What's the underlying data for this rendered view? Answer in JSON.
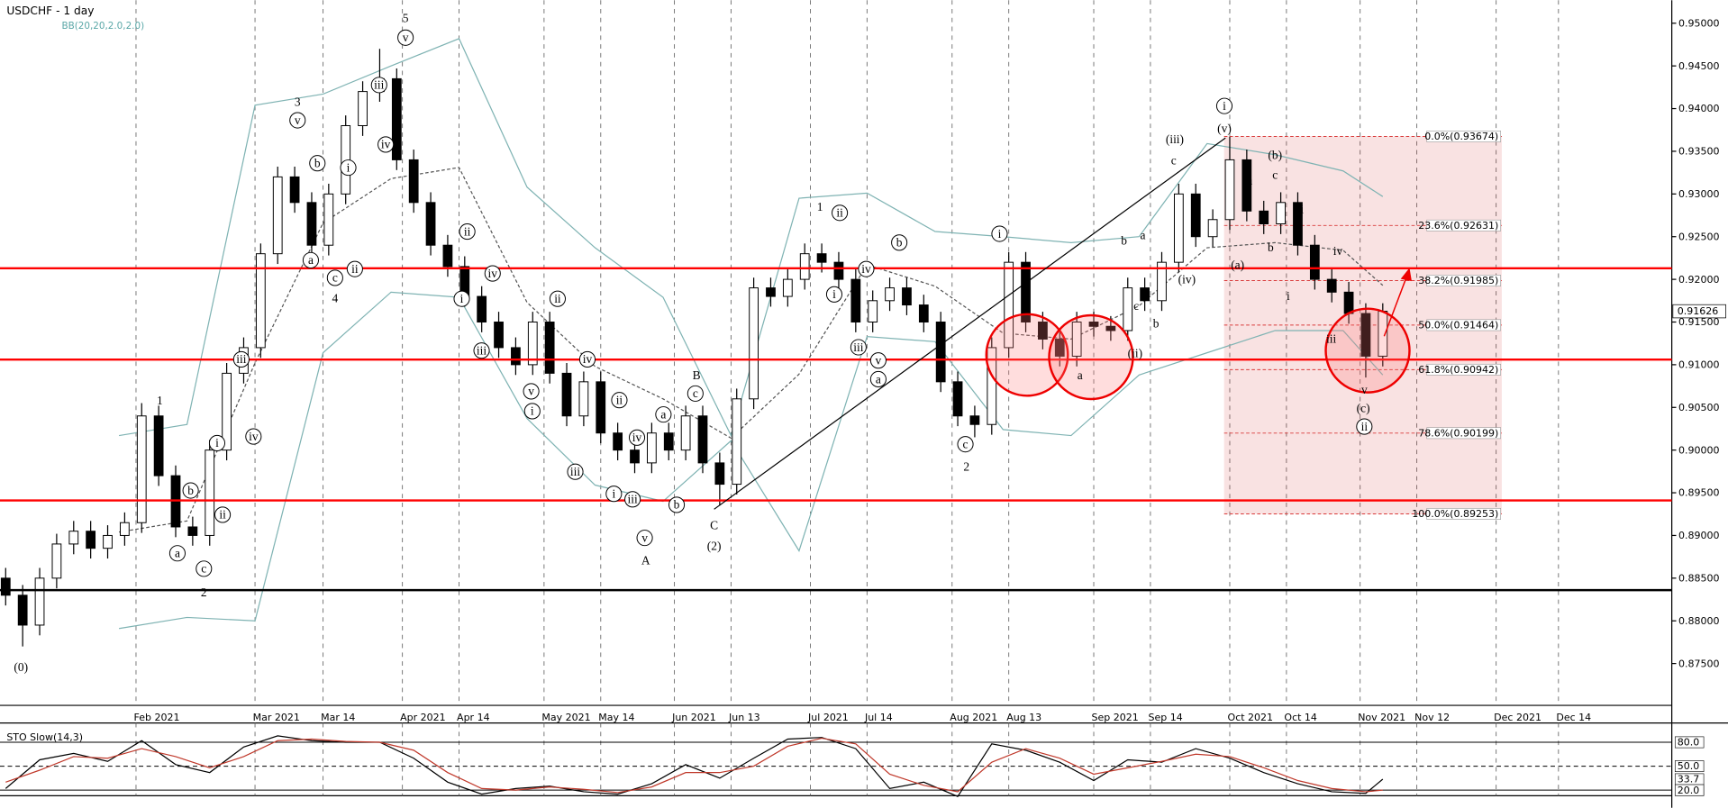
{
  "chart_data": {
    "type": "candlestick",
    "title": "USDCHF - 1 day",
    "indicator_label": "BB(20,20,2.0,2.0)",
    "x": [
      0,
      3,
      6,
      9,
      12,
      15,
      18,
      21,
      24,
      27,
      30,
      33,
      36,
      39,
      42,
      45,
      48,
      51,
      54,
      57,
      60,
      63,
      66,
      69,
      72,
      75,
      78,
      81,
      84,
      87,
      90,
      93,
      96,
      99,
      102,
      105,
      108,
      111,
      114,
      117,
      120,
      123,
      126,
      129,
      132,
      135,
      138,
      141,
      144,
      147,
      150,
      153,
      156,
      159,
      162,
      165,
      168,
      171,
      174,
      177,
      180,
      183,
      186,
      189,
      192,
      195,
      198,
      201,
      204,
      207,
      210,
      213,
      216,
      219,
      222,
      225,
      228,
      231,
      234,
      237,
      240,
      243
    ],
    "open": [
      0.885,
      0.883,
      0.8795,
      0.885,
      0.889,
      0.8905,
      0.8885,
      0.89,
      0.8915,
      0.904,
      0.897,
      0.891,
      0.89,
      0.9,
      0.909,
      0.912,
      0.923,
      0.932,
      0.929,
      0.924,
      0.93,
      0.938,
      0.942,
      0.9435,
      0.934,
      0.929,
      0.924,
      0.9215,
      0.918,
      0.915,
      0.912,
      0.91,
      0.915,
      0.909,
      0.904,
      0.908,
      0.902,
      0.9,
      0.8985,
      0.902,
      0.9,
      0.904,
      0.8985,
      0.896,
      0.906,
      0.919,
      0.918,
      0.92,
      0.923,
      0.922,
      0.92,
      0.915,
      0.9175,
      0.919,
      0.917,
      0.915,
      0.908,
      0.904,
      0.903,
      0.912,
      0.922,
      0.915,
      0.913,
      0.911,
      0.915,
      0.9145,
      0.914,
      0.919,
      0.9175,
      0.922,
      0.93,
      0.925,
      0.927,
      0.934,
      0.928,
      0.9265,
      0.929,
      0.924,
      0.92,
      0.9185,
      0.916,
      0.911
    ],
    "high": [
      0.8862,
      0.8842,
      0.8862,
      0.8902,
      0.8917,
      0.8917,
      0.8912,
      0.8927,
      0.9055,
      0.9052,
      0.8982,
      0.8922,
      0.9012,
      0.9102,
      0.9132,
      0.9242,
      0.9332,
      0.9332,
      0.9302,
      0.9312,
      0.9392,
      0.9432,
      0.947,
      0.9447,
      0.9352,
      0.9302,
      0.9252,
      0.9227,
      0.9192,
      0.9162,
      0.9132,
      0.9162,
      0.9162,
      0.9102,
      0.9092,
      0.9092,
      0.9032,
      0.9012,
      0.9032,
      0.9032,
      0.9052,
      0.9052,
      0.8997,
      0.9072,
      0.9202,
      0.9202,
      0.9212,
      0.9242,
      0.9242,
      0.9232,
      0.9212,
      0.9187,
      0.9202,
      0.9202,
      0.9182,
      0.9162,
      0.9092,
      0.9052,
      0.9132,
      0.9232,
      0.9232,
      0.9162,
      0.9142,
      0.9162,
      0.9162,
      0.9157,
      0.9202,
      0.9202,
      0.9232,
      0.9312,
      0.9312,
      0.9282,
      0.9367,
      0.9352,
      0.9292,
      0.9302,
      0.9302,
      0.9252,
      0.9212,
      0.9197,
      0.9172,
      0.9172
    ],
    "low": [
      0.8818,
      0.877,
      0.8783,
      0.8838,
      0.8878,
      0.8873,
      0.8873,
      0.8888,
      0.8903,
      0.8958,
      0.8898,
      0.8888,
      0.8888,
      0.8988,
      0.9078,
      0.9108,
      0.9218,
      0.9278,
      0.9228,
      0.9228,
      0.9288,
      0.9368,
      0.9408,
      0.9328,
      0.9278,
      0.9228,
      0.9203,
      0.9168,
      0.9138,
      0.9108,
      0.9088,
      0.9088,
      0.9078,
      0.9028,
      0.9028,
      0.9008,
      0.8988,
      0.8973,
      0.8973,
      0.8988,
      0.8988,
      0.8973,
      0.8935,
      0.8948,
      0.9048,
      0.9168,
      0.9168,
      0.9188,
      0.9208,
      0.9188,
      0.9138,
      0.9138,
      0.9163,
      0.9158,
      0.9138,
      0.9068,
      0.9028,
      0.9015,
      0.9018,
      0.9108,
      0.9138,
      0.9118,
      0.9098,
      0.9098,
      0.9133,
      0.9128,
      0.9128,
      0.9163,
      0.9163,
      0.9208,
      0.9238,
      0.9238,
      0.9258,
      0.9268,
      0.9253,
      0.9253,
      0.9228,
      0.9188,
      0.9173,
      0.9148,
      0.9085,
      0.9098
    ],
    "close": [
      0.883,
      0.8795,
      0.885,
      0.889,
      0.8905,
      0.8885,
      0.89,
      0.8915,
      0.904,
      0.897,
      0.891,
      0.89,
      0.9,
      0.909,
      0.912,
      0.923,
      0.932,
      0.929,
      0.924,
      0.93,
      0.938,
      0.942,
      0.9435,
      0.934,
      0.929,
      0.924,
      0.9215,
      0.918,
      0.915,
      0.912,
      0.91,
      0.915,
      0.909,
      0.904,
      0.908,
      0.902,
      0.9,
      0.8985,
      0.902,
      0.9,
      0.904,
      0.8985,
      0.896,
      0.906,
      0.919,
      0.918,
      0.92,
      0.923,
      0.922,
      0.92,
      0.915,
      0.9175,
      0.919,
      0.917,
      0.915,
      0.908,
      0.904,
      0.903,
      0.912,
      0.922,
      0.915,
      0.913,
      0.911,
      0.915,
      0.9145,
      0.914,
      0.919,
      0.9175,
      0.922,
      0.93,
      0.925,
      0.927,
      0.934,
      0.928,
      0.9265,
      0.929,
      0.924,
      0.92,
      0.9185,
      0.916,
      0.911,
      0.91626
    ],
    "colors": {
      "up": "#ffffff",
      "down": "#000000",
      "outline": "#000000"
    },
    "xlim": [
      -1,
      294
    ],
    "ylim": [
      0.8701,
      0.9527
    ],
    "xticks": [
      {
        "value": 23,
        "label": "Feb 2021"
      },
      {
        "value": 44,
        "label": "Mar 2021"
      },
      {
        "value": 56,
        "label": "Mar 14"
      },
      {
        "value": 70,
        "label": "Apr 2021"
      },
      {
        "value": 80,
        "label": "Apr 14"
      },
      {
        "value": 95,
        "label": "May 2021"
      },
      {
        "value": 105,
        "label": "May 14"
      },
      {
        "value": 118,
        "label": "Jun 2021"
      },
      {
        "value": 128,
        "label": "Jun 13"
      },
      {
        "value": 142,
        "label": "Jul 2021"
      },
      {
        "value": 152,
        "label": "Jul 14"
      },
      {
        "value": 167,
        "label": "Aug 2021"
      },
      {
        "value": 177,
        "label": "Aug 13"
      },
      {
        "value": 192,
        "label": "Sep 2021"
      },
      {
        "value": 202,
        "label": "Sep 14"
      },
      {
        "value": 216,
        "label": "Oct 2021"
      },
      {
        "value": 226,
        "label": "Oct 14"
      },
      {
        "value": 239,
        "label": "Nov 2021"
      },
      {
        "value": 249,
        "label": "Nov 12"
      },
      {
        "value": 263,
        "label": "Dec 2021"
      },
      {
        "value": 274,
        "label": "Dec 14"
      }
    ],
    "yticks": [
      {
        "value": 0.875,
        "label": "0.87500"
      },
      {
        "value": 0.88,
        "label": "0.88000"
      },
      {
        "value": 0.885,
        "label": "0.88500"
      },
      {
        "value": 0.89,
        "label": "0.89000"
      },
      {
        "value": 0.895,
        "label": "0.89500"
      },
      {
        "value": 0.9,
        "label": "0.90000"
      },
      {
        "value": 0.905,
        "label": "0.90500"
      },
      {
        "value": 0.91,
        "label": "0.91000"
      },
      {
        "value": 0.915,
        "label": "0.91500"
      },
      {
        "value": 0.92,
        "label": "0.92000"
      },
      {
        "value": 0.925,
        "label": "0.92500"
      },
      {
        "value": 0.93,
        "label": "0.93000"
      },
      {
        "value": 0.935,
        "label": "0.93500"
      },
      {
        "value": 0.94,
        "label": "0.94000"
      },
      {
        "value": 0.945,
        "label": "0.94500"
      },
      {
        "value": 0.95,
        "label": "0.95000"
      }
    ],
    "last_price": {
      "value": 0.91626,
      "label": "0.91626"
    },
    "levels": [
      {
        "value": 0.9213,
        "color": "#ff0000"
      },
      {
        "value": 0.9106,
        "color": "#ff0000"
      },
      {
        "value": 0.8941,
        "color": "#ff0000"
      },
      {
        "value": 0.8836,
        "color": "#000000"
      }
    ],
    "fib": {
      "x": [
        215,
        264
      ],
      "color": "#d93b3b",
      "levels": [
        {
          "value": 0.93674,
          "label": "0.0%(0.93674)"
        },
        {
          "value": 0.92631,
          "label": "23.6%(0.92631)"
        },
        {
          "value": 0.91985,
          "label": "38.2%(0.91985)"
        },
        {
          "value": 0.91464,
          "label": "50.0%(0.91464)"
        },
        {
          "value": 0.90942,
          "label": "61.8%(0.90942)"
        },
        {
          "value": 0.90199,
          "label": "78.6%(0.90199)"
        },
        {
          "value": 0.89253,
          "label": "100.0%(0.89253)"
        }
      ]
    },
    "bands": {
      "color": "#7fb3b3",
      "x": [
        20,
        32,
        44,
        56,
        68,
        80,
        92,
        104,
        116,
        128,
        140,
        152,
        164,
        176,
        188,
        200,
        212,
        224,
        236,
        243
      ],
      "upper": [
        0.9017,
        0.903,
        0.9404,
        0.9417,
        0.945,
        0.9482,
        0.9308,
        0.9237,
        0.9179,
        0.9017,
        0.9295,
        0.9301,
        0.9256,
        0.925,
        0.9243,
        0.925,
        0.9359,
        0.9346,
        0.9327,
        0.9297
      ],
      "middle": [
        0.8904,
        0.8917,
        0.9102,
        0.9266,
        0.9318,
        0.9331,
        0.9173,
        0.9098,
        0.906,
        0.9014,
        0.9089,
        0.9217,
        0.9192,
        0.9137,
        0.913,
        0.9169,
        0.9237,
        0.9243,
        0.9234,
        0.9193
      ],
      "lower": [
        0.8791,
        0.8804,
        0.88,
        0.9114,
        0.9185,
        0.9179,
        0.9037,
        0.8959,
        0.894,
        0.9011,
        0.8882,
        0.9133,
        0.9127,
        0.9024,
        0.9017,
        0.9088,
        0.9114,
        0.914,
        0.914,
        0.9088
      ]
    },
    "wave_labels": [
      "(0)",
      "1",
      "2",
      "3",
      "4",
      "5",
      "A",
      "B",
      "C",
      "(2)",
      "1",
      "2",
      "(iii)",
      "(v)",
      "(b)",
      "(a)",
      "(iv)",
      "(c)",
      "a",
      "b",
      "c",
      "i",
      "ii",
      "iii",
      "iv",
      "v",
      "b",
      "a",
      "c",
      "b",
      "c",
      "a",
      "(ii)",
      "v",
      "iii",
      "iv",
      "i",
      "ii",
      "c",
      "a",
      "b",
      "v",
      "i",
      "ii",
      "iv",
      "iii",
      "a",
      "b",
      "c",
      "ii",
      "iv",
      "i",
      "iii",
      "v",
      "i",
      "ii",
      "iv",
      "ii",
      "iv",
      "iii",
      "i",
      "iii",
      "v",
      "b",
      "a",
      "c",
      "i",
      "c",
      "i",
      "ii",
      "ii",
      "i",
      "iv",
      "iii",
      "v",
      "a",
      "b"
    ],
    "stochastic": {
      "title": "STO Slow(14,3)",
      "x": [
        0,
        6,
        12,
        18,
        24,
        30,
        36,
        42,
        48,
        54,
        60,
        66,
        72,
        78,
        84,
        90,
        96,
        102,
        108,
        114,
        120,
        126,
        132,
        138,
        144,
        150,
        156,
        162,
        168,
        174,
        180,
        186,
        192,
        198,
        204,
        210,
        216,
        222,
        228,
        234,
        240,
        243
      ],
      "ylim": [
        13,
        100
      ],
      "yticks": [
        {
          "value": 80,
          "label": "80.0"
        },
        {
          "value": 50,
          "label": "50.0"
        },
        {
          "value": 20,
          "label": "20.0"
        }
      ],
      "series": [
        {
          "color": "#000000",
          "values": [
            22,
            58,
            66,
            56,
            82,
            52,
            42,
            74,
            88,
            82,
            80,
            80,
            60,
            30,
            15,
            22,
            25,
            18,
            15,
            28,
            52,
            35,
            60,
            84,
            86,
            72,
            22,
            30,
            12,
            78,
            70,
            55,
            32,
            58,
            55,
            72,
            60,
            42,
            28,
            18,
            16,
            33.7
          ]
        },
        {
          "color": "#c0392b",
          "values": [
            30,
            45,
            62,
            60,
            72,
            62,
            48,
            62,
            82,
            84,
            81,
            80,
            70,
            42,
            22,
            20,
            24,
            21,
            17,
            24,
            42,
            42,
            50,
            75,
            85,
            78,
            40,
            26,
            18,
            55,
            72,
            60,
            40,
            48,
            56,
            65,
            62,
            48,
            32,
            22,
            18,
            20
          ],
          "value_labels": [
            null,
            null,
            null,
            null,
            null,
            null,
            null,
            null,
            null,
            null,
            null,
            null,
            null,
            null,
            null,
            null,
            null,
            null,
            null,
            null,
            null,
            null,
            null,
            null,
            null,
            null,
            null,
            null,
            null,
            null,
            null,
            null,
            null,
            null,
            null,
            null,
            null,
            null,
            null,
            null,
            null,
            "20.0"
          ]
        }
      ]
    }
  }
}
